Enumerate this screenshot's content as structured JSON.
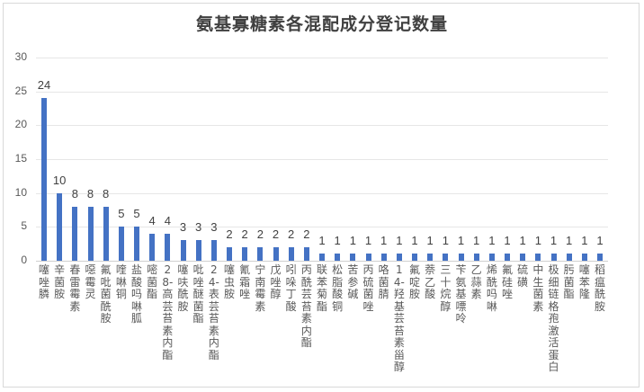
{
  "chart_data": {
    "type": "bar",
    "title": "氨基寡糖素各混配成分登记数量",
    "xlabel": "",
    "ylabel": "",
    "ylim": [
      0,
      30
    ],
    "yticks": [
      0,
      5,
      10,
      15,
      20,
      25,
      30
    ],
    "grid": true,
    "legend": "none",
    "bar_color": "#4472c4",
    "categories": [
      "噻唑膦",
      "辛菌胺",
      "春雷霉素",
      "噁霉灵",
      "氟吡菌酰胺",
      "喹啉铜",
      "盐酸吗啉胍",
      "嘧菌酯",
      "28-高芸苔素内酯",
      "噻呋酰胺",
      "吡唑醚菌酯",
      "24-表芸苔素内酯",
      "噻虫胺",
      "氰霜唑",
      "宁南霉素",
      "戊唑醇",
      "吲哚丁酸",
      "丙酰芸苔素内酯",
      "联苯菊酯",
      "松脂酸铜",
      "苦参碱",
      "丙硫菌唑",
      "咯菌腈",
      "14-羟基芸苔素甾醇",
      "氟啶胺",
      "萘乙酸",
      "三十烷醇",
      "苄氨基嘌呤",
      "乙蒜素",
      "烯酰吗啉",
      "氟硅唑",
      "硫磺",
      "中生菌素",
      "极细链格孢激活蛋白",
      "肟菌酯",
      "噻苯隆",
      "稻瘟酰胺"
    ],
    "values": [
      24,
      10,
      8,
      8,
      8,
      5,
      5,
      4,
      4,
      3,
      3,
      3,
      2,
      2,
      2,
      2,
      2,
      2,
      1,
      1,
      1,
      1,
      1,
      1,
      1,
      1,
      1,
      1,
      1,
      1,
      1,
      1,
      1,
      1,
      1,
      1,
      1
    ]
  }
}
